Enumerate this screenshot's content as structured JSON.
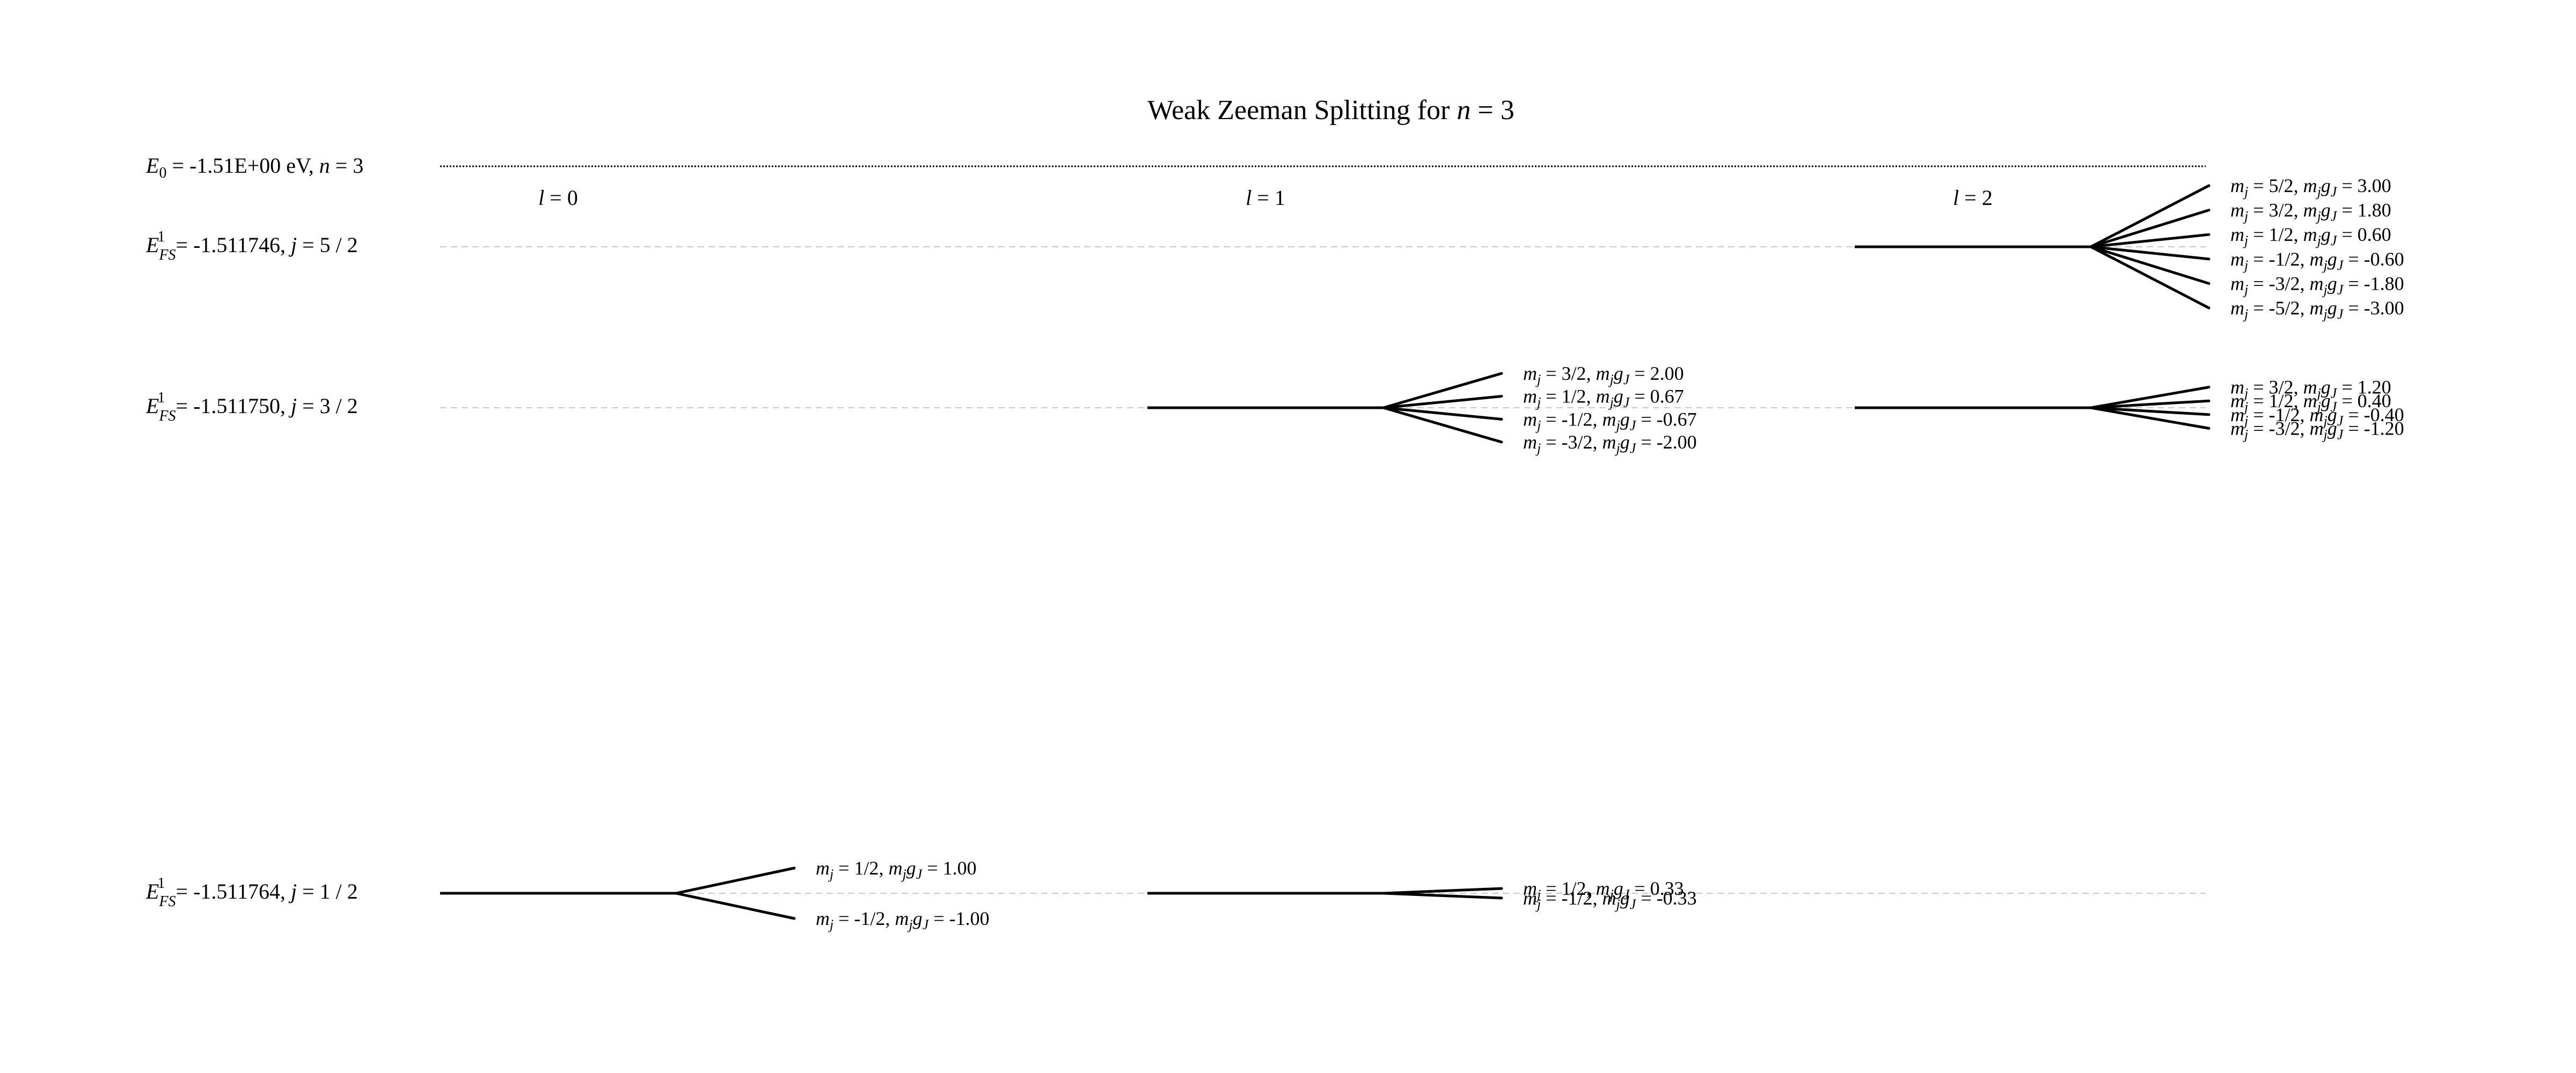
{
  "diagram": {
    "title": {
      "prefix": "Weak Zeeman Splitting for ",
      "var": "n",
      "suffix": " = 3"
    },
    "base_level": {
      "E": "E",
      "E_sub": "0",
      "value_text": " = -1.51E+00 eV, ",
      "n_var": "n",
      "n_text": " = 3",
      "energy_ev": -1.51
    },
    "fine_structure_levels": [
      {
        "key": "j52",
        "E_sub": "FS",
        "E_sup": "1",
        "value_text": " = -1.511746, ",
        "j_var": "j",
        "j_text": " = 5 / 2"
      },
      {
        "key": "j32",
        "E_sub": "FS",
        "E_sup": "1",
        "value_text": " = -1.511750, ",
        "j_var": "j",
        "j_text": " = 3 / 2"
      },
      {
        "key": "j12",
        "E_sub": "FS",
        "E_sup": "1",
        "value_text": " = -1.511764, ",
        "j_var": "j",
        "j_text": " = 1 / 2"
      }
    ],
    "l_columns": [
      {
        "var": "l",
        "text": " = 0"
      },
      {
        "var": "l",
        "text": " = 1"
      },
      {
        "var": "l",
        "text": " = 2"
      }
    ],
    "groups": [
      {
        "column": 0,
        "level": "j12",
        "sublevels": [
          {
            "mj": "1/2",
            "mjgj": "1.00",
            "mjgj_value": 1.0
          },
          {
            "mj": "-1/2",
            "mjgj": "-1.00",
            "mjgj_value": -1.0
          }
        ]
      },
      {
        "column": 1,
        "level": "j32",
        "sublevels": [
          {
            "mj": "3/2",
            "mjgj": "2.00",
            "mjgj_value": 2.0
          },
          {
            "mj": "1/2",
            "mjgj": "0.67",
            "mjgj_value": 0.67
          },
          {
            "mj": "-1/2",
            "mjgj": "-0.67",
            "mjgj_value": -0.67
          },
          {
            "mj": "-3/2",
            "mjgj": "-2.00",
            "mjgj_value": -2.0
          }
        ]
      },
      {
        "column": 1,
        "level": "j12",
        "sublevels": [
          {
            "mj": "1/2",
            "mjgj": "0.33",
            "mjgj_value": 0.33
          },
          {
            "mj": "-1/2",
            "mjgj": "-0.33",
            "mjgj_value": -0.33
          }
        ]
      },
      {
        "column": 2,
        "level": "j52",
        "sublevels": [
          {
            "mj": "5/2",
            "mjgj": "3.00",
            "mjgj_value": 3.0
          },
          {
            "mj": "3/2",
            "mjgj": "1.80",
            "mjgj_value": 1.8
          },
          {
            "mj": "1/2",
            "mjgj": "0.60",
            "mjgj_value": 0.6
          },
          {
            "mj": "-1/2",
            "mjgj": "-0.60",
            "mjgj_value": -0.6
          },
          {
            "mj": "-3/2",
            "mjgj": "-1.80",
            "mjgj_value": -1.8
          },
          {
            "mj": "-5/2",
            "mjgj": "-3.00",
            "mjgj_value": -3.0
          }
        ]
      },
      {
        "column": 2,
        "level": "j32",
        "sublevels": [
          {
            "mj": "3/2",
            "mjgj": "1.20",
            "mjgj_value": 1.2
          },
          {
            "mj": "1/2",
            "mjgj": "0.40",
            "mjgj_value": 0.4
          },
          {
            "mj": "-1/2",
            "mjgj": "-0.40",
            "mjgj_value": -0.4
          },
          {
            "mj": "-3/2",
            "mjgj": "-1.20",
            "mjgj_value": -1.2
          }
        ]
      }
    ],
    "sublevel_text": {
      "mj_var": "m",
      "mj_sub": "j",
      "eq1": " = ",
      "comma": ", ",
      "gj_m": "m",
      "gj_m_sub": "j",
      "gj_g": "g",
      "gj_g_sub": "J",
      "eq2": " = "
    },
    "colors": {
      "line": "#000000",
      "guide": "#c8c8c8",
      "text": "#000000"
    }
  }
}
